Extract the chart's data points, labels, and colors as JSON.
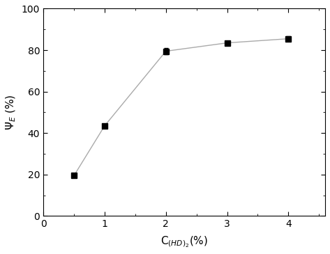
{
  "x": [
    0.5,
    1,
    2,
    3,
    4
  ],
  "y": [
    19.5,
    43.5,
    79.5,
    83.5,
    85.5
  ],
  "yerr": [
    0.8,
    1.0,
    1.5,
    1.0,
    1.2
  ],
  "xlabel": "C$_{(HD)_2}$(%)",
  "ylabel": "$\\Psi_E$ (%)",
  "xlim": [
    0,
    4.6
  ],
  "ylim": [
    0,
    100
  ],
  "xticks": [
    0,
    1,
    2,
    3,
    4
  ],
  "yticks": [
    0,
    20,
    40,
    60,
    80,
    100
  ],
  "line_color": "#aaaaaa",
  "marker_color": "black",
  "marker": "s",
  "marker_size": 6,
  "linewidth": 1.0,
  "capsize": 2.5,
  "elinewidth": 0.9
}
